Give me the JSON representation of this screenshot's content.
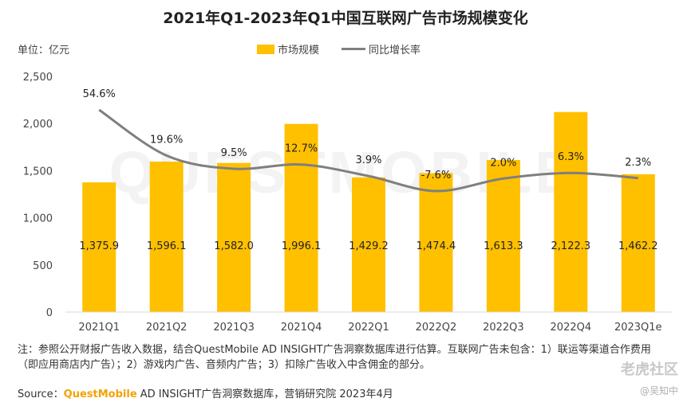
{
  "chart_data": {
    "type": "bar",
    "title": "2021年Q1-2023年Q1中国互联网广告市场规模变化",
    "unit_label": "单位：亿元",
    "categories": [
      "2021Q1",
      "2021Q2",
      "2021Q3",
      "2021Q4",
      "2022Q1",
      "2022Q2",
      "2022Q3",
      "2022Q4",
      "2023Q1e"
    ],
    "series": [
      {
        "name": "市场规模",
        "type": "bar",
        "values": [
          1375.9,
          1596.1,
          1582.0,
          1996.1,
          1429.2,
          1474.4,
          1613.3,
          2122.3,
          1462.2
        ],
        "labels": [
          "1,375.9",
          "1,596.1",
          "1,582.0",
          "1,996.1",
          "1,429.2",
          "1,474.4",
          "1,613.3",
          "2,122.3",
          "1,462.2"
        ]
      },
      {
        "name": "同比增长率",
        "type": "line",
        "values": [
          54.6,
          19.6,
          9.5,
          12.7,
          3.9,
          -7.6,
          2.0,
          6.3,
          2.3
        ],
        "labels": [
          "54.6%",
          "19.6%",
          "9.5%",
          "12.7%",
          "3.9%",
          "-7.6%",
          "2.0%",
          "6.3%",
          "2.3%"
        ]
      }
    ],
    "ylim": [
      0,
      2500
    ],
    "yticks": [
      "0",
      "500",
      "1,000",
      "1,500",
      "2,000",
      "2,500"
    ],
    "grid": false,
    "legend_position": "top-center",
    "colors": {
      "bar": "#FFC000",
      "line": "#7f7f7f"
    }
  },
  "note": "注：参照公开财报广告收入数据，结合QuestMobile AD INSIGHT广告洞察数据库进行估算。互联网广告未包含：1）联运等渠道合作费用（即应用商店内广告）；2）游戏内广告、音频内广告；3）扣除广告收入中含佣金的部分。",
  "source_prefix": "Source：",
  "source_brand": "QuestMobile",
  "source_suffix": " AD INSIGHT广告洞察数据库，营销研究院 2023年4月",
  "watermark_bg": "QUESTMOBILE",
  "watermark_right": "老虎社区",
  "watermark_right2": "@吴知中"
}
